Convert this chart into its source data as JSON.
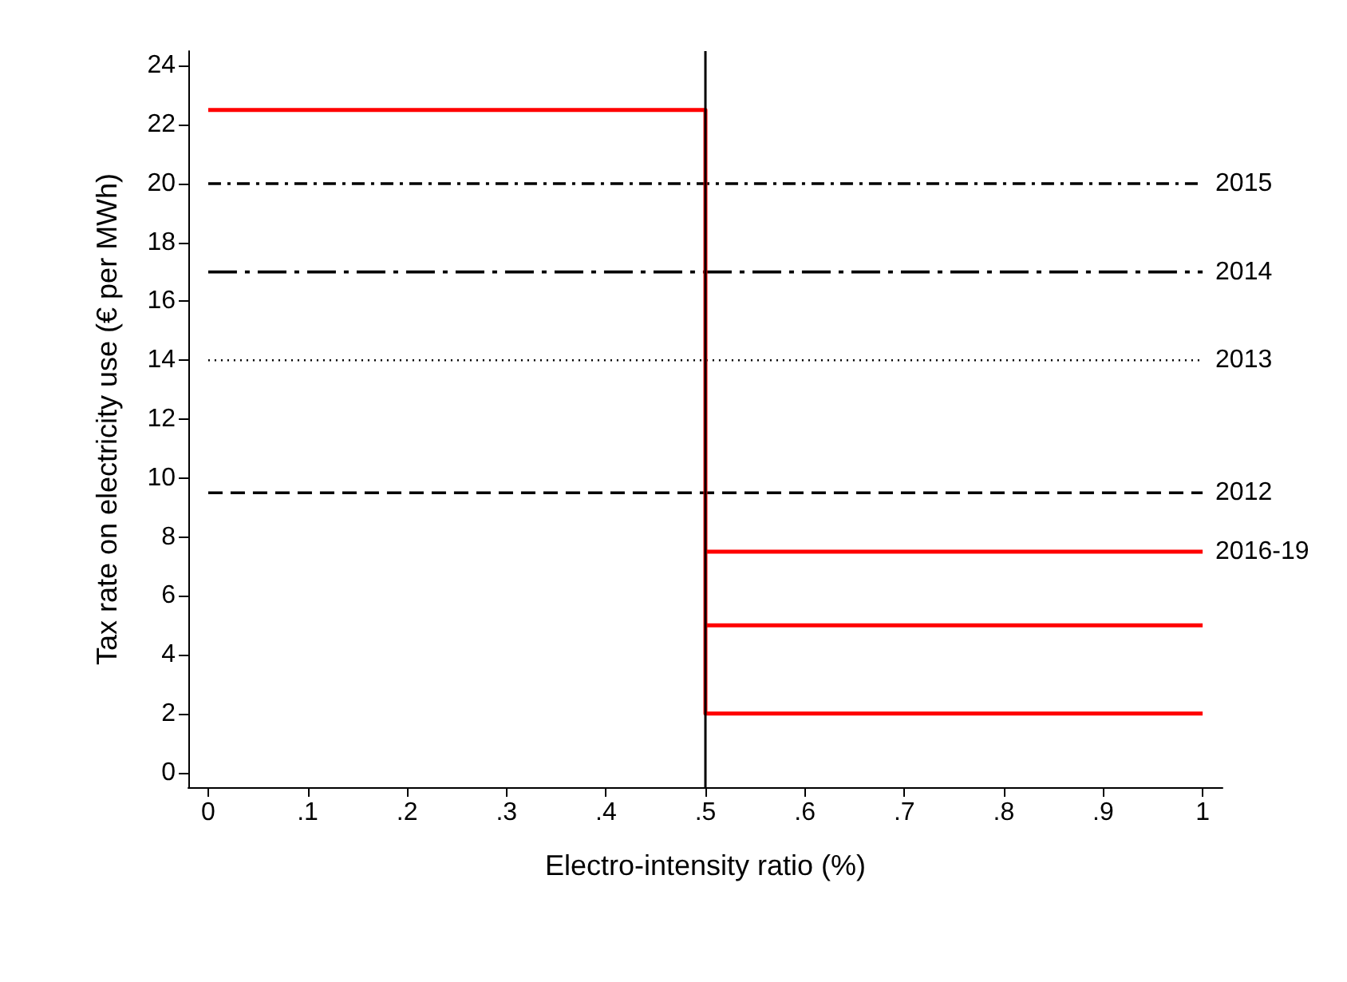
{
  "chart_data": {
    "type": "line",
    "xlabel": "Electro-intensity ratio (%)",
    "ylabel": "Tax rate on electricity use (€ per MWh)",
    "xlim": [
      -0.02,
      1.02
    ],
    "ylim": [
      -0.5,
      24.5
    ],
    "xticks": [
      0,
      {
        "value": 0.1,
        "label": ".1"
      },
      {
        "value": 0.2,
        "label": ".2"
      },
      {
        "value": 0.3,
        "label": ".3"
      },
      {
        "value": 0.4,
        "label": ".4"
      },
      {
        "value": 0.5,
        "label": ".5"
      },
      {
        "value": 0.6,
        "label": ".6"
      },
      {
        "value": 0.7,
        "label": ".7"
      },
      {
        "value": 0.8,
        "label": ".8"
      },
      {
        "value": 0.9,
        "label": ".9"
      },
      1
    ],
    "yticks": [
      0,
      2,
      4,
      6,
      8,
      10,
      12,
      14,
      16,
      18,
      20,
      22,
      24
    ],
    "grid": false,
    "legend": false,
    "marker": "none",
    "ref_lines": [
      {
        "axis": "x",
        "value": 0.5,
        "color": "#000000",
        "line_style": "solid"
      }
    ],
    "series": [
      {
        "name": "2015",
        "color": "#000000",
        "line_style": "dashdot",
        "x": [
          0,
          1
        ],
        "values": [
          20,
          20
        ]
      },
      {
        "name": "2014",
        "color": "#000000",
        "line_style": "longdashdot",
        "x": [
          0,
          1
        ],
        "values": [
          17,
          17
        ]
      },
      {
        "name": "2013",
        "color": "#000000",
        "line_style": "dotted",
        "x": [
          0,
          1
        ],
        "values": [
          14,
          14
        ]
      },
      {
        "name": "2012",
        "color": "#000000",
        "line_style": "dashed",
        "x": [
          0,
          1
        ],
        "values": [
          9.5,
          9.5
        ]
      },
      {
        "color": "#ff0000",
        "line_style": "solid",
        "x": [
          0,
          0.5,
          0.5,
          1
        ],
        "values": [
          22.5,
          22.5,
          2,
          2
        ]
      },
      {
        "name": "2016-19",
        "color": "#ff0000",
        "line_style": "solid",
        "x": [
          0.5,
          1
        ],
        "values": [
          7.5,
          7.5
        ]
      },
      {
        "color": "#ff0000",
        "line_style": "solid",
        "x": [
          0.5,
          1
        ],
        "values": [
          5,
          5
        ]
      }
    ]
  }
}
